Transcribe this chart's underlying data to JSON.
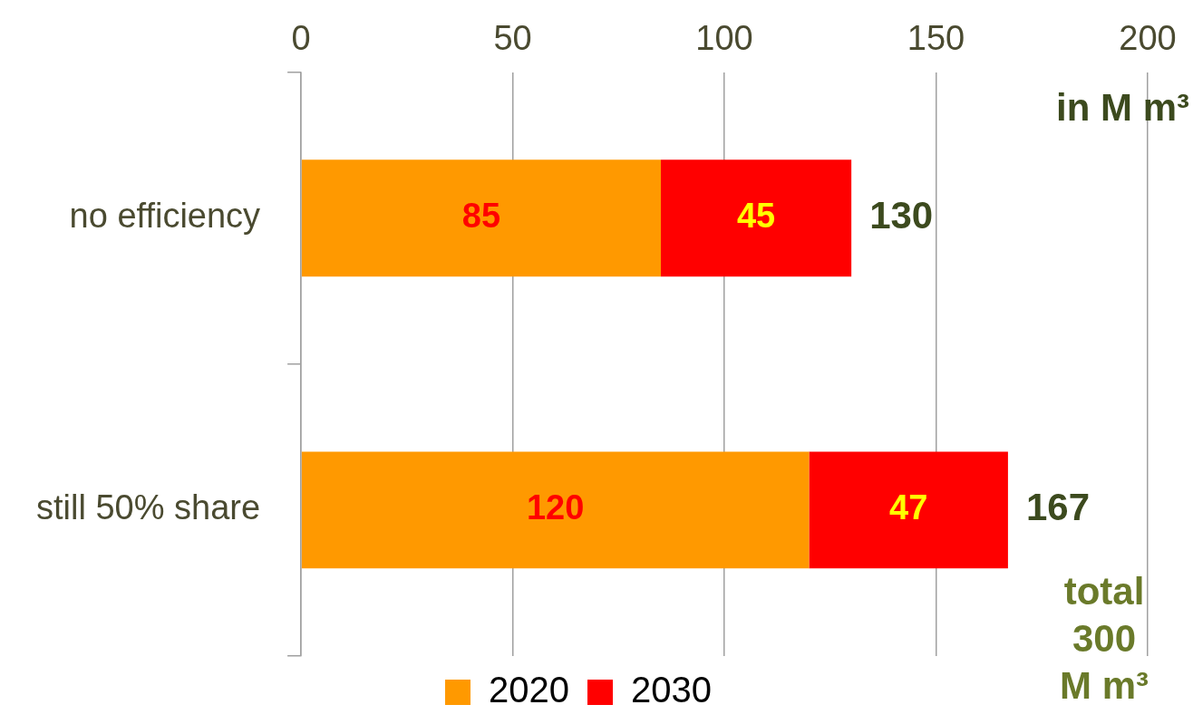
{
  "chart_data": {
    "type": "bar",
    "orientation": "horizontal",
    "stacked": true,
    "categories": [
      "no efficiency",
      "still 50% share"
    ],
    "series": [
      {
        "name": "2020",
        "color": "#ff9900",
        "values": [
          85,
          120
        ]
      },
      {
        "name": "2030",
        "color": "#ff0000",
        "values": [
          45,
          47
        ]
      }
    ],
    "xlim": [
      0,
      200
    ],
    "xticks": [
      0,
      50,
      100,
      150,
      200
    ],
    "grid": "x",
    "legend": "bottom",
    "data_labels": true,
    "totals": [
      "130",
      "167"
    ],
    "annotations": [
      "in M m³",
      "total 300 M m³"
    ]
  }
}
